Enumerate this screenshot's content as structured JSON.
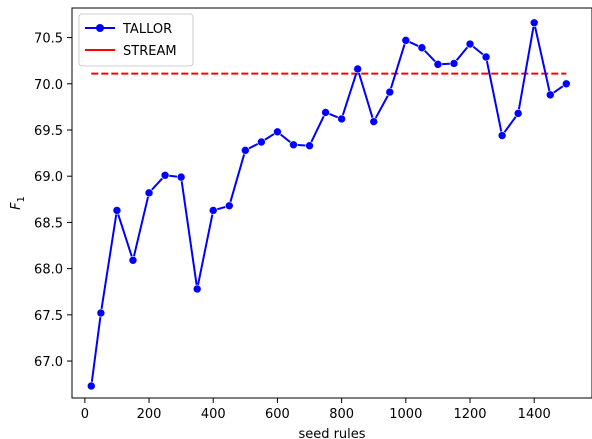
{
  "chart_data": {
    "type": "line",
    "title": "",
    "xlabel": "seed rules",
    "ylabel": "F",
    "ylabel_subscript": "1",
    "xlim": [
      -40,
      1580
    ],
    "ylim": [
      66.6,
      70.82
    ],
    "xticks": [
      0,
      200,
      400,
      600,
      800,
      1000,
      1200,
      1400
    ],
    "yticks": [
      67.0,
      67.5,
      68.0,
      68.5,
      69.0,
      69.5,
      70.0,
      70.5
    ],
    "ytick_labels": [
      "67.0",
      "67.5",
      "68.0",
      "68.5",
      "69.0",
      "69.5",
      "70.0",
      "70.5"
    ],
    "grid": false,
    "legend_position": "top-left",
    "series": [
      {
        "name": "TALLOR",
        "color": "#0000ff",
        "style": "solid",
        "marker": "circle",
        "x": [
          20,
          50,
          100,
          150,
          200,
          250,
          300,
          350,
          400,
          450,
          500,
          550,
          600,
          650,
          700,
          750,
          800,
          850,
          900,
          950,
          1000,
          1050,
          1100,
          1150,
          1200,
          1250,
          1300,
          1350,
          1400,
          1450,
          1500
        ],
        "y": [
          66.73,
          67.52,
          68.63,
          68.09,
          68.82,
          69.01,
          68.99,
          67.78,
          68.63,
          68.68,
          69.28,
          69.37,
          69.48,
          69.34,
          69.33,
          69.69,
          69.62,
          70.16,
          69.59,
          69.91,
          70.47,
          70.39,
          70.21,
          70.22,
          70.43,
          70.29,
          69.44,
          69.68,
          70.66,
          69.88,
          70.0
        ]
      },
      {
        "name": "STREAM",
        "color": "#ff0000",
        "style": "dashed",
        "marker": "none",
        "x": [
          20,
          1500
        ],
        "y": [
          70.11,
          70.11
        ]
      }
    ]
  }
}
